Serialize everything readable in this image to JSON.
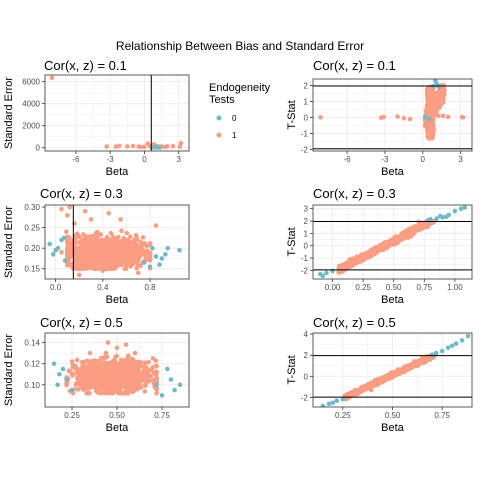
{
  "figure": {
    "title": "Relationship Between Bias and Standard Error"
  },
  "legend": {
    "title_line1": "Endogeneity",
    "title_line2": "Tests",
    "entries": [
      {
        "label": "0",
        "color": "#6fbac7"
      },
      {
        "label": "1",
        "color": "#fa9d82"
      }
    ]
  },
  "colors": {
    "group0": "#6fbac7",
    "group1": "#fa9d82",
    "panel_bg": "#ffffff",
    "grid": "#ebebeb",
    "frame": "#333333"
  },
  "chart_data": [
    {
      "type": "scatter",
      "title": "Cor(x, z) = 0.1",
      "xlabel": "Beta",
      "ylabel": "Standard Error",
      "xlim": [
        -8.7,
        3.9
      ],
      "ylim": [
        -300,
        6600
      ],
      "xticks": [
        -6,
        -3,
        0,
        3
      ],
      "xticklabels": [
        "-6",
        "-3",
        "0",
        "3"
      ],
      "yticks": [
        0,
        2000,
        4000,
        6000
      ],
      "yticklabels": [
        "0",
        "2000",
        "4000",
        "6000"
      ],
      "vline": 0.6,
      "hlines": [],
      "points_group1": [
        [
          -8.1,
          6350
        ],
        [
          -3.3,
          110
        ],
        [
          -0.5,
          100
        ],
        [
          -2.5,
          100
        ],
        [
          -1.5,
          120
        ],
        [
          -1.0,
          150
        ],
        [
          -2.2,
          160
        ],
        [
          0.5,
          130
        ],
        [
          1.0,
          180
        ],
        [
          1.5,
          110
        ],
        [
          2.0,
          120
        ],
        [
          2.5,
          140
        ],
        [
          3.1,
          100
        ],
        [
          3.2,
          420
        ],
        [
          0.8,
          300
        ],
        [
          0.3,
          380
        ],
        [
          1.2,
          90
        ],
        [
          0.0,
          80
        ],
        [
          1.8,
          70
        ],
        [
          -0.3,
          60
        ],
        [
          0.6,
          50
        ],
        [
          1.4,
          40
        ],
        [
          0.9,
          30
        ],
        [
          1.1,
          20
        ]
      ],
      "points_group0": [
        [
          0.9,
          30
        ],
        [
          1.1,
          40
        ],
        [
          1.3,
          20
        ],
        [
          0.7,
          25
        ]
      ],
      "cloud": null
    },
    {
      "type": "scatter",
      "title": "Cor(x, z) = 0.1",
      "xlabel": "Beta",
      "ylabel": "T-Stat",
      "xlim": [
        -8.7,
        3.9
      ],
      "ylim": [
        -2.1,
        2.4
      ],
      "xticks": [
        -6,
        -3,
        0,
        3
      ],
      "xticklabels": [
        "-6",
        "-3",
        "0",
        "3"
      ],
      "yticks": [
        -2,
        -1,
        0,
        1,
        2
      ],
      "yticklabels": [
        "-2",
        "-1",
        "0",
        "1",
        "2"
      ],
      "vline": null,
      "hlines": [
        1.96,
        -1.96
      ],
      "points_group1": [
        [
          -8.1,
          0.0
        ],
        [
          -3.3,
          -0.02
        ],
        [
          -3.1,
          0.02
        ],
        [
          3.1,
          0.02
        ],
        [
          3.2,
          0.01
        ],
        [
          -1.5,
          -0.05
        ],
        [
          -2.0,
          0.05
        ],
        [
          2.0,
          0.03
        ],
        [
          -1.0,
          -0.1
        ],
        [
          1.6,
          0.1
        ]
      ],
      "points_group0": [
        [
          1.0,
          2.3
        ],
        [
          1.2,
          2.0
        ],
        [
          0.8,
          1.95
        ],
        [
          1.1,
          2.1
        ],
        [
          0.5,
          -0.1
        ],
        [
          0.2,
          0.05
        ],
        [
          1.3,
          1.9
        ]
      ],
      "cloud": {
        "shape": "tstat01",
        "n": 900
      }
    },
    {
      "type": "scatter",
      "title": "Cor(x, z) = 0.3",
      "xlabel": "Beta",
      "ylabel": "Standard Error",
      "xlim": [
        -0.09,
        1.13
      ],
      "ylim": [
        0.125,
        0.305
      ],
      "xticks": [
        0.0,
        0.4,
        0.8
      ],
      "xticklabels": [
        "0.0",
        "0.4",
        "0.8"
      ],
      "yticks": [
        0.15,
        0.2,
        0.25,
        0.3
      ],
      "yticklabels": [
        "0.15",
        "0.20",
        "0.25",
        "0.30"
      ],
      "vline": 0.15,
      "hlines": [],
      "points_group1": [
        [
          0.05,
          0.295
        ],
        [
          0.1,
          0.28
        ],
        [
          0.25,
          0.29
        ],
        [
          0.3,
          0.27
        ],
        [
          0.55,
          0.27
        ],
        [
          0.16,
          0.26
        ],
        [
          0.45,
          0.285
        ],
        [
          0.12,
          0.3
        ],
        [
          0.2,
          0.135
        ],
        [
          0.4,
          0.145
        ],
        [
          0.7,
          0.14
        ],
        [
          0.85,
          0.255
        ],
        [
          0.09,
          0.24
        ],
        [
          0.05,
          0.19
        ]
      ],
      "points_group0": [
        [
          -0.05,
          0.21
        ],
        [
          0.0,
          0.195
        ],
        [
          0.05,
          0.22
        ],
        [
          -0.02,
          0.185
        ],
        [
          0.02,
          0.2
        ],
        [
          0.08,
          0.17
        ],
        [
          0.07,
          0.225
        ],
        [
          0.85,
          0.18
        ],
        [
          0.9,
          0.175
        ],
        [
          0.95,
          0.2
        ],
        [
          0.88,
          0.16
        ],
        [
          0.8,
          0.155
        ],
        [
          0.93,
          0.185
        ],
        [
          1.05,
          0.195
        ],
        [
          0.75,
          0.165
        ],
        [
          0.82,
          0.2
        ]
      ],
      "cloud": {
        "shape": "se03",
        "n": 1100
      }
    },
    {
      "type": "scatter",
      "title": "Cor(x, z) = 0.3",
      "xlabel": "Beta",
      "ylabel": "T-Stat",
      "xlim": [
        -0.16,
        1.14
      ],
      "ylim": [
        -2.7,
        3.3
      ],
      "xticks": [
        0.0,
        0.25,
        0.5,
        0.75,
        1.0
      ],
      "xticklabels": [
        "0.00",
        "0.25",
        "0.50",
        "0.75",
        "1.00"
      ],
      "yticks": [
        -2,
        -1,
        0,
        1,
        2,
        3
      ],
      "yticklabels": [
        "-2",
        "-1",
        "0",
        "1",
        "2",
        "3"
      ],
      "vline": null,
      "hlines": [
        1.96,
        -1.96
      ],
      "points_group1": [],
      "points_group0": [
        [
          -0.1,
          -2.3
        ],
        [
          -0.05,
          -2.2
        ],
        [
          -0.08,
          -2.45
        ],
        [
          0.0,
          -2.05
        ],
        [
          0.8,
          2.15
        ],
        [
          0.85,
          2.2
        ],
        [
          0.9,
          2.3
        ],
        [
          0.95,
          2.5
        ],
        [
          1.05,
          3.0
        ],
        [
          1.0,
          2.8
        ],
        [
          0.88,
          2.4
        ],
        [
          1.08,
          3.1
        ],
        [
          0.78,
          2.05
        ],
        [
          0.93,
          2.35
        ]
      ],
      "cloud": {
        "shape": "line03",
        "n": 900
      }
    },
    {
      "type": "scatter",
      "title": "Cor(x, z) = 0.5",
      "xlabel": "Beta",
      "ylabel": "Standard Error",
      "xlim": [
        0.1,
        0.9
      ],
      "ylim": [
        0.079,
        0.149
      ],
      "xticks": [
        0.25,
        0.5,
        0.75
      ],
      "xticklabels": [
        "0.25",
        "0.50",
        "0.75"
      ],
      "yticks": [
        0.1,
        0.12,
        0.14
      ],
      "yticklabels": [
        "0.10",
        "0.12",
        "0.14"
      ],
      "vline": null,
      "hlines": [],
      "points_group1": [
        [
          0.45,
          0.14
        ],
        [
          0.5,
          0.135
        ],
        [
          0.55,
          0.138
        ],
        [
          0.35,
          0.13
        ],
        [
          0.6,
          0.13
        ],
        [
          0.25,
          0.122
        ],
        [
          0.7,
          0.125
        ]
      ],
      "points_group0": [
        [
          0.15,
          0.12
        ],
        [
          0.18,
          0.11
        ],
        [
          0.2,
          0.115
        ],
        [
          0.22,
          0.105
        ],
        [
          0.17,
          0.1
        ],
        [
          0.25,
          0.095
        ],
        [
          0.8,
          0.105
        ],
        [
          0.85,
          0.1
        ],
        [
          0.78,
          0.115
        ],
        [
          0.75,
          0.09
        ],
        [
          0.82,
          0.095
        ],
        [
          0.72,
          0.1
        ]
      ],
      "cloud": {
        "shape": "se05",
        "n": 1100
      }
    },
    {
      "type": "scatter",
      "title": "Cor(x, z) = 0.5",
      "xlabel": "Beta",
      "ylabel": "T-Stat",
      "xlim": [
        0.1,
        0.9
      ],
      "ylim": [
        -2.9,
        4.1
      ],
      "xticks": [
        0.25,
        0.5,
        0.75
      ],
      "xticklabels": [
        "0.25",
        "0.50",
        "0.75"
      ],
      "yticks": [
        -2,
        0,
        2,
        4
      ],
      "yticklabels": [
        "-2",
        "0",
        "2",
        "4"
      ],
      "vline": null,
      "hlines": [
        1.96,
        -1.96
      ],
      "points_group1": [],
      "points_group0": [
        [
          0.15,
          -2.8
        ],
        [
          0.18,
          -2.6
        ],
        [
          0.2,
          -2.5
        ],
        [
          0.22,
          -2.3
        ],
        [
          0.25,
          -2.15
        ],
        [
          0.72,
          2.2
        ],
        [
          0.75,
          2.4
        ],
        [
          0.78,
          2.7
        ],
        [
          0.8,
          2.9
        ],
        [
          0.85,
          3.4
        ],
        [
          0.88,
          3.8
        ],
        [
          0.82,
          3.1
        ],
        [
          0.7,
          2.05
        ]
      ],
      "cloud": {
        "shape": "line05",
        "n": 900
      }
    }
  ]
}
